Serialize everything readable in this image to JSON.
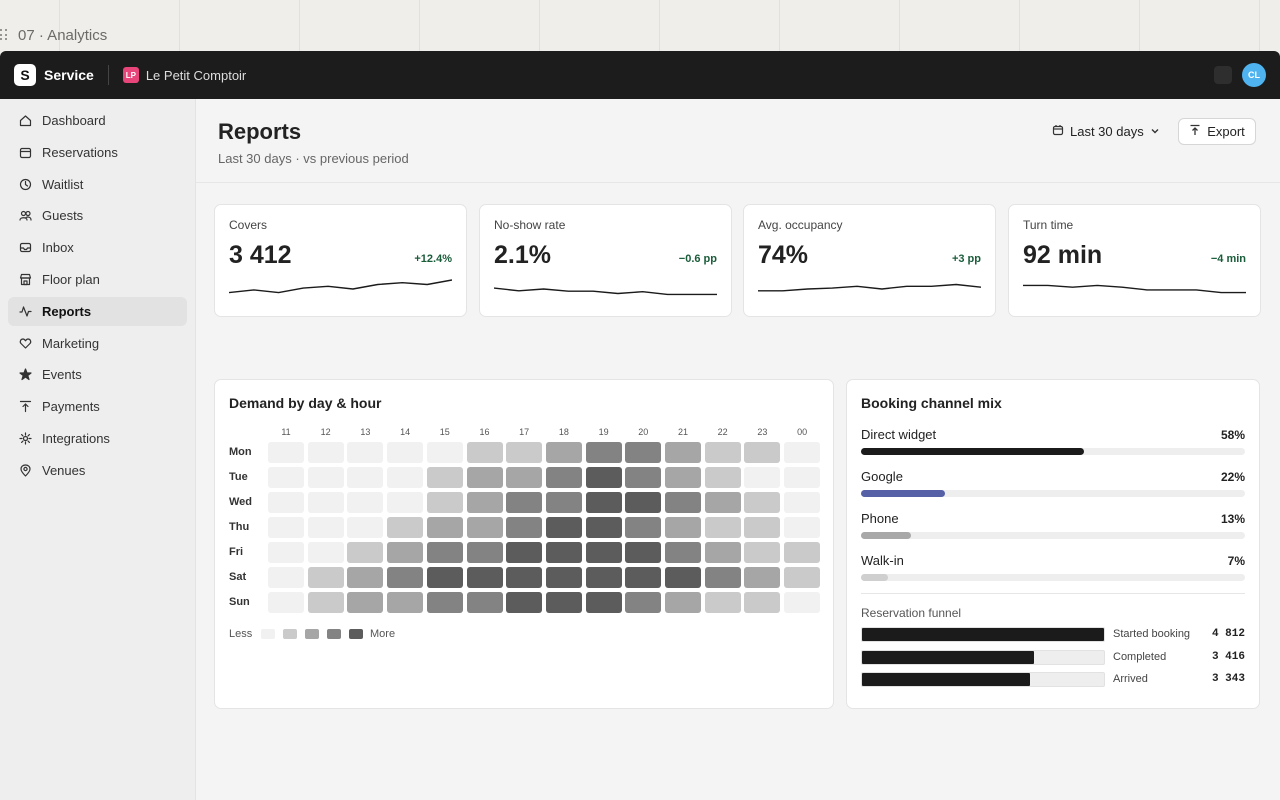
{
  "canvas": {
    "title": "07 · Analytics"
  },
  "topbar": {
    "logo_letter": "S",
    "brand": "Service",
    "venue_initials": "LP",
    "venue_name": "Le Petit Comptoir",
    "user_initials": "CL"
  },
  "sidebar": {
    "items": [
      {
        "label": "Dashboard",
        "icon": "home-icon"
      },
      {
        "label": "Reservations",
        "icon": "calendar-icon"
      },
      {
        "label": "Waitlist",
        "icon": "clock-icon"
      },
      {
        "label": "Guests",
        "icon": "users-icon"
      },
      {
        "label": "Inbox",
        "icon": "inbox-icon"
      },
      {
        "label": "Floor plan",
        "icon": "store-icon"
      },
      {
        "label": "Reports",
        "icon": "activity-icon",
        "active": true
      },
      {
        "label": "Marketing",
        "icon": "heart-icon"
      },
      {
        "label": "Events",
        "icon": "star-icon"
      },
      {
        "label": "Payments",
        "icon": "payment-icon"
      },
      {
        "label": "Integrations",
        "icon": "integrations-icon"
      },
      {
        "label": "Venues",
        "icon": "location-pin-icon"
      }
    ]
  },
  "header": {
    "title": "Reports",
    "subtitle": "Last 30 days · vs previous period",
    "range_label": "Last 30 days",
    "export_label": "Export"
  },
  "kpis": [
    {
      "label": "Covers",
      "value": "3 412",
      "delta": "+12.4%",
      "spark": [
        0.3,
        0.45,
        0.3,
        0.55,
        0.65,
        0.5,
        0.75,
        0.85,
        0.75,
        1.0
      ]
    },
    {
      "label": "No-show rate",
      "value": "2.1%",
      "delta": "−0.6 pp",
      "spark": [
        0.55,
        0.4,
        0.5,
        0.38,
        0.38,
        0.25,
        0.35,
        0.2,
        0.2,
        0.2
      ]
    },
    {
      "label": "Avg. occupancy",
      "value": "74%",
      "delta": "+3 pp",
      "spark": [
        0.4,
        0.4,
        0.5,
        0.55,
        0.65,
        0.5,
        0.65,
        0.65,
        0.75,
        0.6
      ]
    },
    {
      "label": "Turn time",
      "value": "92 min",
      "delta": "−4 min",
      "spark": [
        0.7,
        0.7,
        0.6,
        0.7,
        0.6,
        0.45,
        0.45,
        0.45,
        0.3,
        0.3
      ]
    }
  ],
  "demand": {
    "title": "Demand by day & hour",
    "hours": [
      "11",
      "12",
      "13",
      "14",
      "15",
      "16",
      "17",
      "18",
      "19",
      "20",
      "21",
      "22",
      "23",
      "00"
    ],
    "days": [
      "Mon",
      "Tue",
      "Wed",
      "Thu",
      "Fri",
      "Sat",
      "Sun"
    ],
    "levels": [
      [
        0,
        0,
        0,
        0,
        0,
        1,
        1,
        2,
        3,
        3,
        2,
        1,
        1,
        0
      ],
      [
        0,
        0,
        0,
        0,
        1,
        2,
        2,
        3,
        4,
        3,
        2,
        1,
        0,
        0
      ],
      [
        0,
        0,
        0,
        0,
        1,
        2,
        3,
        3,
        4,
        4,
        3,
        2,
        1,
        0
      ],
      [
        0,
        0,
        0,
        1,
        2,
        2,
        3,
        4,
        4,
        3,
        2,
        1,
        1,
        0
      ],
      [
        0,
        0,
        1,
        2,
        3,
        3,
        4,
        4,
        4,
        4,
        3,
        2,
        1,
        1
      ],
      [
        0,
        1,
        2,
        3,
        4,
        4,
        4,
        4,
        4,
        4,
        4,
        3,
        2,
        1
      ],
      [
        0,
        1,
        2,
        2,
        3,
        3,
        4,
        4,
        4,
        3,
        2,
        1,
        1,
        0
      ]
    ],
    "scale_colors": [
      "#f1f1f1",
      "#cacaca",
      "#a6a6a6",
      "#838383",
      "#5c5c5c"
    ],
    "legend_less": "Less",
    "legend_more": "More"
  },
  "channels": {
    "title": "Booking channel mix",
    "items": [
      {
        "label": "Direct widget",
        "pct_label": "58%",
        "value": 58,
        "color": "#1b1b1b"
      },
      {
        "label": "Google",
        "pct_label": "22%",
        "value": 22,
        "color": "#5560a6"
      },
      {
        "label": "Phone",
        "pct_label": "13%",
        "value": 13,
        "color": "#a8a8a8"
      },
      {
        "label": "Walk-in",
        "pct_label": "7%",
        "value": 7,
        "color": "#cfcfcf"
      }
    ],
    "funnel_title": "Reservation funnel",
    "funnel": [
      {
        "label": "Started booking",
        "value": "4 812",
        "count": 4812
      },
      {
        "label": "Completed",
        "value": "3 416",
        "count": 3416
      },
      {
        "label": "Arrived",
        "value": "3 343",
        "count": 3343
      }
    ]
  }
}
